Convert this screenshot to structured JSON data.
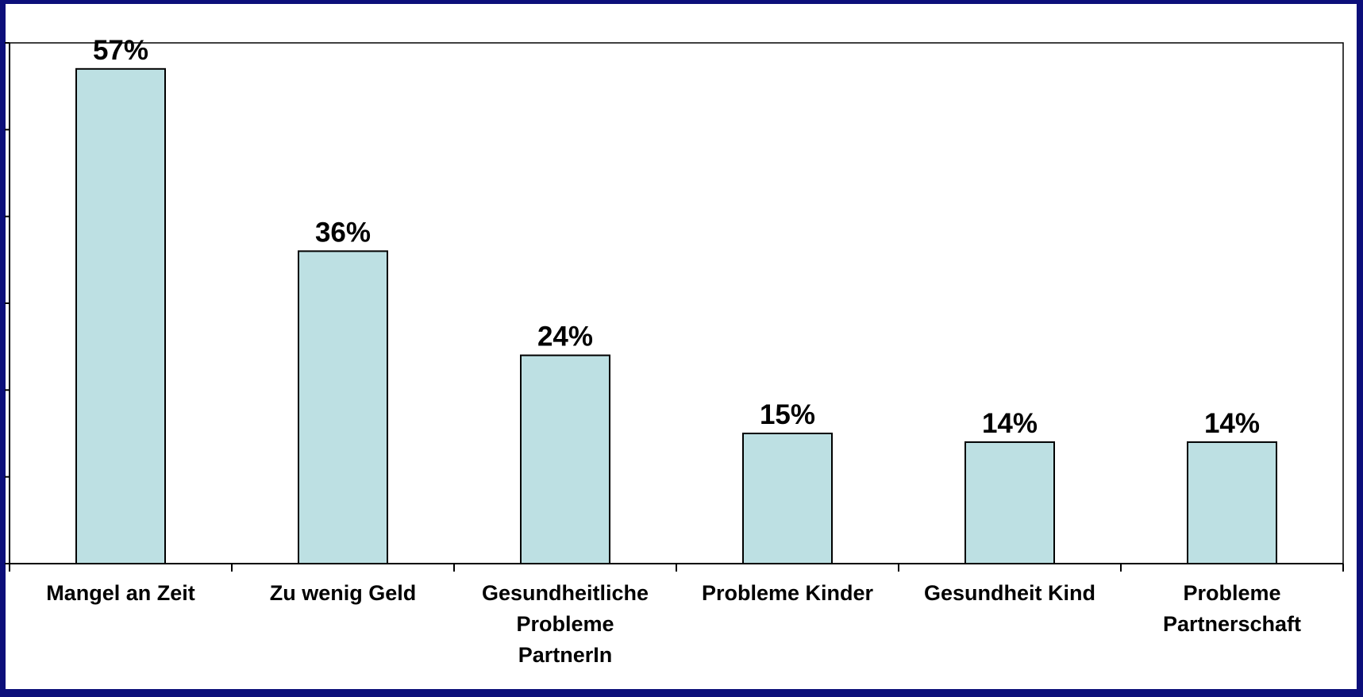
{
  "chart_data": {
    "type": "bar",
    "categories": [
      [
        "Mangel an Zeit"
      ],
      [
        "Zu wenig Geld"
      ],
      [
        "Gesundheitliche",
        "Probleme",
        "PartnerIn"
      ],
      [
        "Probleme Kinder"
      ],
      [
        "Gesundheit Kind"
      ],
      [
        "Probleme",
        "Partnerschaft"
      ]
    ],
    "values": [
      57,
      36,
      24,
      15,
      14,
      14
    ],
    "value_labels": [
      "57%",
      "36%",
      "24%",
      "15%",
      "14%",
      "14%"
    ],
    "unit": "%",
    "ylim": [
      0,
      60
    ],
    "grid": false,
    "legend": "none",
    "colors": {
      "bar_fill": "#bde0e3",
      "bar_stroke": "#000000",
      "frame": "#0c0f7a"
    }
  }
}
